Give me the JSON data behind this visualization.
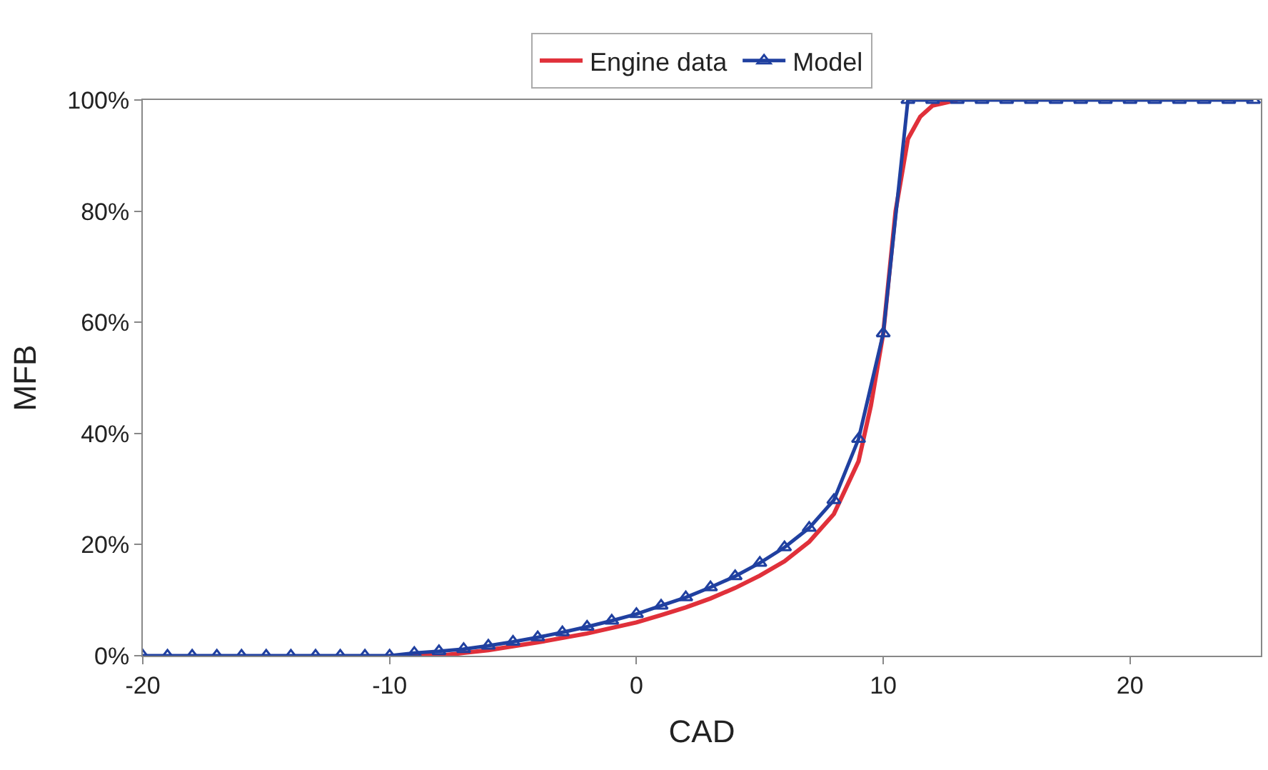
{
  "chart_data": {
    "type": "line",
    "xlabel": "CAD",
    "ylabel": "MFB",
    "xlim": [
      -20,
      25.3
    ],
    "xticks": [
      -20,
      -10,
      0,
      10,
      20
    ],
    "ylim": [
      0,
      100
    ],
    "yticks": [
      {
        "value": 0,
        "label": "0%"
      },
      {
        "value": 20,
        "label": "20%"
      },
      {
        "value": 40,
        "label": "40%"
      },
      {
        "value": 60,
        "label": "60%"
      },
      {
        "value": 80,
        "label": "80%"
      },
      {
        "value": 100,
        "label": "100%"
      }
    ],
    "legend": "top",
    "series": [
      {
        "name": "Engine data",
        "color": "#e0303a",
        "marker": "none",
        "x": [
          -10,
          -8,
          -7,
          -6,
          -5,
          -4,
          -3,
          -2,
          -1,
          0,
          1,
          2,
          3,
          4,
          5,
          6,
          7,
          8,
          9,
          9.5,
          10,
          10.5,
          11,
          11.5,
          12,
          13
        ],
        "values": [
          0,
          0,
          0.5,
          1,
          1.7,
          2.4,
          3.2,
          4,
          5,
          6,
          7.3,
          8.7,
          10.3,
          12.2,
          14.4,
          17,
          20.5,
          25.5,
          35,
          45,
          58,
          80,
          93,
          97,
          99,
          100
        ]
      },
      {
        "name": "Model",
        "color": "#2040a0",
        "marker": "triangle",
        "x": [
          -20,
          -19,
          -18,
          -17,
          -16,
          -15,
          -14,
          -13,
          -12,
          -11,
          -10,
          -9,
          -8,
          -7,
          -6,
          -5,
          -4,
          -3,
          -2,
          -1,
          0,
          1,
          2,
          3,
          4,
          5,
          6,
          7,
          8,
          9,
          10,
          11,
          12,
          13,
          14,
          15,
          16,
          17,
          18,
          19,
          20,
          21,
          22,
          23,
          24,
          25
        ],
        "values": [
          0,
          0,
          0,
          0,
          0,
          0,
          0,
          0,
          0,
          0,
          0,
          0.5,
          0.8,
          1.2,
          1.8,
          2.5,
          3.3,
          4.2,
          5.2,
          6.3,
          7.5,
          9,
          10.5,
          12.3,
          14.3,
          16.7,
          19.5,
          23,
          28,
          39,
          58,
          100,
          100,
          100,
          100,
          100,
          100,
          100,
          100,
          100,
          100,
          100,
          100,
          100,
          100,
          100
        ]
      }
    ]
  }
}
